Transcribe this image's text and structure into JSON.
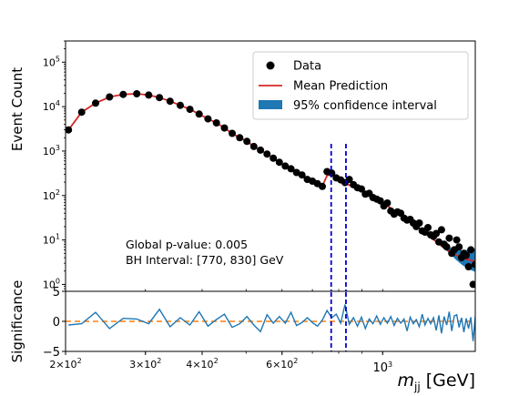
{
  "chart_data": [
    {
      "type": "scatter",
      "panel": "main",
      "ylabel": "Event Count",
      "xscale": "log",
      "yscale": "log",
      "xlim": [
        200,
        1600
      ],
      "ylim": [
        0.7,
        300000
      ],
      "y_ticks": [
        {
          "value": 1,
          "base": "10",
          "exp": "0"
        },
        {
          "value": 10,
          "base": "10",
          "exp": "1"
        },
        {
          "value": 100,
          "base": "10",
          "exp": "2"
        },
        {
          "value": 1000,
          "base": "10",
          "exp": "3"
        },
        {
          "value": 10000,
          "base": "10",
          "exp": "4"
        },
        {
          "value": 100000,
          "base": "10",
          "exp": "5"
        }
      ],
      "legend": {
        "location": "upper right",
        "entries": [
          "Data",
          "Mean Prediction",
          "95% confidence interval"
        ]
      },
      "annotations": [
        "Global p-value: 0.005",
        "BH Interval: [770, 830] GeV"
      ],
      "bh_interval": [
        770,
        830
      ],
      "series": [
        {
          "name": "Data",
          "style": "scatter",
          "color": "#000000",
          "x": [
            203,
            217,
            233,
            250,
            268,
            287,
            305,
            322,
            340,
            358,
            376,
            394,
            412,
            430,
            448,
            466,
            484,
            502,
            520,
            538,
            556,
            574,
            592,
            610,
            628,
            646,
            664,
            682,
            700,
            718,
            736,
            754,
            772,
            790,
            808,
            826,
            844,
            862,
            880,
            898,
            916,
            934,
            952,
            970,
            988,
            1006,
            1024,
            1042,
            1060,
            1078,
            1096,
            1114,
            1132,
            1150,
            1168,
            1186,
            1204,
            1222,
            1240,
            1258,
            1276,
            1294,
            1312,
            1330,
            1348,
            1366,
            1384,
            1402,
            1420,
            1438,
            1456,
            1474,
            1492,
            1510,
            1528,
            1546,
            1564,
            1582,
            1600
          ],
          "y": [
            3000,
            7500,
            12000,
            16500,
            18800,
            19500,
            18200,
            16000,
            13200,
            10700,
            8700,
            6800,
            5300,
            4300,
            3300,
            2500,
            2000,
            1650,
            1270,
            1050,
            860,
            690,
            560,
            460,
            400,
            330,
            290,
            230,
            210,
            185,
            160,
            345,
            320,
            250,
            225,
            195,
            230,
            175,
            150,
            140,
            107,
            112,
            90,
            83,
            76,
            58,
            68,
            45,
            38,
            43,
            40,
            31,
            28,
            29,
            24,
            20,
            24,
            16,
            15,
            19,
            13,
            12,
            14,
            9,
            17,
            8,
            7,
            11,
            5,
            6,
            10,
            7,
            4,
            5,
            4.5,
            2.5,
            6,
            1,
            2.8
          ]
        },
        {
          "name": "Mean Prediction",
          "style": "line",
          "color": "#d62728",
          "x": [
            203,
            217,
            233,
            250,
            268,
            287,
            305,
            322,
            340,
            358,
            376,
            394,
            412,
            430,
            448,
            466,
            484,
            502,
            520,
            538,
            556,
            574,
            592,
            610,
            628,
            646,
            664,
            682,
            700,
            718,
            736,
            754,
            772,
            790,
            808,
            826,
            844,
            862,
            880,
            898,
            916,
            934,
            952,
            970,
            988,
            1006,
            1024,
            1042,
            1060,
            1078,
            1096,
            1114,
            1132,
            1150,
            1168,
            1186,
            1204,
            1222,
            1240,
            1258,
            1276,
            1294,
            1312,
            1330,
            1348,
            1366,
            1384,
            1402,
            1420,
            1438,
            1456,
            1474,
            1492,
            1510,
            1528,
            1546,
            1564,
            1582,
            1600
          ],
          "y": [
            3000,
            7500,
            12000,
            16500,
            18800,
            19500,
            18200,
            16000,
            13200,
            10700,
            8700,
            6800,
            5300,
            4300,
            3300,
            2500,
            2000,
            1650,
            1270,
            1050,
            860,
            690,
            560,
            460,
            390,
            330,
            285,
            235,
            205,
            180,
            162,
            280,
            300,
            240,
            215,
            190,
            172,
            155,
            140,
            126,
            113,
            102,
            92,
            83,
            75,
            66,
            59,
            52,
            46,
            41,
            37,
            33,
            29,
            26,
            23,
            20,
            18,
            16,
            14.2,
            12.8,
            11.5,
            10.3,
            9.2,
            8.2,
            7.4,
            6.6,
            6,
            5.5,
            5.1,
            4.8,
            4.5,
            4.3,
            4.1,
            3.9,
            3.7,
            3.6,
            3.5,
            3.4,
            3.3
          ]
        },
        {
          "name": "95% confidence interval",
          "style": "band",
          "color": "#1f77b4",
          "x": [
            1300,
            1350,
            1400,
            1450,
            1500,
            1550,
            1600
          ],
          "lower": [
            9.5,
            7.0,
            5.2,
            3.6,
            2.7,
            2.2,
            1.9
          ],
          "upper": [
            10.2,
            8.0,
            6.8,
            6.0,
            5.9,
            6.0,
            6.3
          ]
        }
      ]
    },
    {
      "type": "line",
      "panel": "significance",
      "xlabel": "m_jj [GeV]",
      "ylabel": "Significance",
      "xscale": "log",
      "xlim": [
        200,
        1600
      ],
      "ylim": [
        -5,
        5
      ],
      "x_ticks": [
        {
          "value": 200,
          "mant": "2×",
          "base": "10",
          "exp": "2"
        },
        {
          "value": 300,
          "mant": "3×",
          "base": "10",
          "exp": "2"
        },
        {
          "value": 400,
          "mant": "4×",
          "base": "10",
          "exp": "2"
        },
        {
          "value": 600,
          "mant": "6×",
          "base": "10",
          "exp": "2"
        },
        {
          "value": 1000,
          "mant": "",
          "base": "10",
          "exp": "3"
        }
      ],
      "y_ticks": [
        "5",
        "0",
        "−5"
      ],
      "reference_line": {
        "y": 0,
        "color": "#ff7f0e",
        "style": "dashed"
      },
      "series": [
        {
          "name": "",
          "color": "#1f77b4",
          "x": [
            203,
            217,
            233,
            250,
            268,
            287,
            305,
            322,
            340,
            358,
            376,
            394,
            412,
            430,
            448,
            466,
            484,
            502,
            520,
            538,
            556,
            574,
            592,
            610,
            628,
            646,
            664,
            682,
            700,
            718,
            736,
            754,
            772,
            790,
            808,
            826,
            844,
            862,
            880,
            898,
            916,
            934,
            952,
            970,
            988,
            1006,
            1024,
            1042,
            1060,
            1078,
            1096,
            1114,
            1132,
            1150,
            1168,
            1186,
            1204,
            1222,
            1240,
            1258,
            1276,
            1294,
            1312,
            1330,
            1348,
            1366,
            1384,
            1402,
            1420,
            1438,
            1456,
            1474,
            1492,
            1510,
            1528,
            1546,
            1564,
            1582,
            1600
          ],
          "y": [
            -0.6,
            -0.4,
            1.5,
            -1.2,
            0.5,
            0.4,
            -0.4,
            2.0,
            -0.9,
            0.6,
            -0.6,
            1.6,
            -0.8,
            0.3,
            1.2,
            -1.0,
            -0.4,
            0.8,
            -0.6,
            -1.7,
            1.1,
            -0.3,
            0.8,
            -0.3,
            1.5,
            -0.7,
            -0.2,
            0.6,
            -0.2,
            -0.8,
            0.2,
            1.8,
            0.6,
            1.2,
            -0.3,
            2.8,
            -0.5,
            0.6,
            -0.8,
            0.7,
            -1.2,
            0.4,
            -0.4,
            0.9,
            -0.5,
            0.6,
            -0.3,
            0.8,
            -0.7,
            0.5,
            -0.3,
            0.4,
            -1.6,
            0.7,
            -0.4,
            0.3,
            -0.9,
            1.2,
            -0.6,
            0.5,
            -0.4,
            0.6,
            -1.5,
            1.0,
            -2.0,
            0.8,
            -0.6,
            1.6,
            -1.6,
            0.9,
            1.1,
            -1.0,
            0.6,
            -1.8,
            0.5,
            -1.2,
            0.7,
            -3.3,
            0.8
          ]
        }
      ]
    }
  ]
}
